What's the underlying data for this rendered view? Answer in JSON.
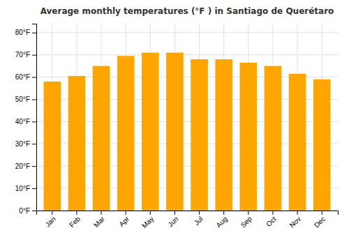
{
  "chart_data": {
    "type": "bar",
    "title": "Average monthly temperatures (°F ) in Santiago de Querétaro",
    "categories": [
      "Jan",
      "Feb",
      "Mar",
      "Apr",
      "May",
      "Jun",
      "Jul",
      "Aug",
      "Sep",
      "Oct",
      "Nov",
      "Dec"
    ],
    "values": [
      58,
      60.5,
      65,
      69.5,
      71,
      71,
      68,
      68,
      66.5,
      65,
      61.5,
      59
    ],
    "color": "#FFA500",
    "ylim": [
      0,
      84
    ],
    "yticks": [
      {
        "value": 0,
        "label": "0°F"
      },
      {
        "value": 10,
        "label": "10°F"
      },
      {
        "value": 20,
        "label": "20°F"
      },
      {
        "value": 30,
        "label": "30°F"
      },
      {
        "value": 40,
        "label": "40°F"
      },
      {
        "value": 50,
        "label": "50°F"
      },
      {
        "value": 60,
        "label": "60°F"
      },
      {
        "value": 70,
        "label": "70°F"
      },
      {
        "value": 80,
        "label": "80°F"
      }
    ],
    "grid": true
  }
}
